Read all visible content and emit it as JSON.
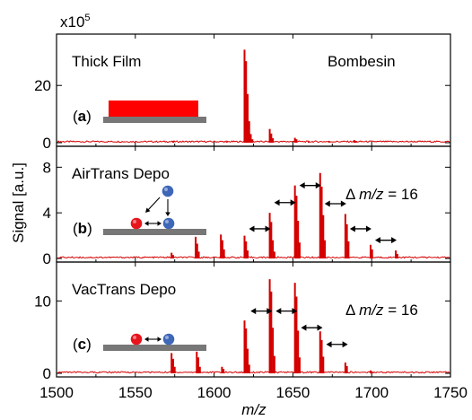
{
  "chart_data": {
    "type": "line",
    "x_axis": {
      "label": "m/z",
      "range": [
        1500,
        1750
      ],
      "ticks": [
        1500,
        1550,
        1600,
        1650,
        1700,
        1750
      ]
    },
    "y_axis": {
      "label": "Signal [a.u.]",
      "multiplier": "x10",
      "multiplier_exponent": "5"
    },
    "colors": {
      "trace": "#d40000",
      "film": "#ff0000",
      "substrate": "#777777",
      "red_sphere": "#e8141c",
      "blue_sphere": "#3e67b8"
    },
    "panels": [
      {
        "id": "a",
        "label_prefix": "(",
        "label_letter": "a",
        "label_suffix": ")",
        "name": "Thick Film",
        "analyte": "Bombesin",
        "ylim": [
          0,
          37
        ],
        "yticks": [
          0,
          20
        ],
        "inset": "film",
        "peaks": [
          [
            1574.0,
            0.4
          ],
          [
            1608.0,
            0.3
          ],
          [
            1619.3,
            32.5
          ],
          [
            1620.3,
            28.5
          ],
          [
            1621.3,
            17
          ],
          [
            1622.3,
            7.5
          ],
          [
            1623.3,
            3
          ],
          [
            1624.3,
            1.2
          ],
          [
            1635.3,
            4.8
          ],
          [
            1636.3,
            3.2
          ],
          [
            1637.3,
            1.6
          ],
          [
            1651.3,
            1.7
          ],
          [
            1652.3,
            1.2
          ],
          [
            1660.0,
            0.4
          ],
          [
            1673.0,
            0.3
          ],
          [
            1689.0,
            0.9
          ],
          [
            1690.0,
            0.6
          ]
        ]
      },
      {
        "id": "b",
        "label_prefix": "(",
        "label_letter": "b",
        "label_suffix": ")",
        "name": "AirTrans Depo",
        "annotation_prefix": "Δ ",
        "annotation_var": "m/z",
        "annotation_suffix": " = 16",
        "ylim": [
          0,
          9.6
        ],
        "yticks": [
          0,
          4,
          8
        ],
        "inset": "airtrans",
        "peaks": [
          [
            1573.0,
            0.5
          ],
          [
            1574.0,
            0.3
          ],
          [
            1588.3,
            1.9
          ],
          [
            1589.3,
            1.3
          ],
          [
            1590.3,
            0.6
          ],
          [
            1604.3,
            2.1
          ],
          [
            1605.3,
            1.6
          ],
          [
            1606.3,
            0.8
          ],
          [
            1619.3,
            2.0
          ],
          [
            1620.3,
            1.5
          ],
          [
            1621.3,
            0.7
          ],
          [
            1635.3,
            4.0
          ],
          [
            1636.3,
            3.2
          ],
          [
            1637.3,
            1.6
          ],
          [
            1638.3,
            0.6
          ],
          [
            1651.3,
            6.4
          ],
          [
            1652.3,
            5.5
          ],
          [
            1653.3,
            3.3
          ],
          [
            1654.3,
            1.4
          ],
          [
            1667.3,
            7.5
          ],
          [
            1668.3,
            6.3
          ],
          [
            1669.3,
            3.8
          ],
          [
            1670.3,
            1.6
          ],
          [
            1683.3,
            3.9
          ],
          [
            1684.3,
            3.0
          ],
          [
            1685.3,
            1.5
          ],
          [
            1699.3,
            1.2
          ],
          [
            1700.3,
            0.8
          ],
          [
            1715.3,
            0.7
          ],
          [
            1716.3,
            0.4
          ]
        ],
        "arrows": [
          [
            1621,
            1637,
            2.6
          ],
          [
            1637,
            1653,
            4.9
          ],
          [
            1653,
            1669,
            6.4
          ],
          [
            1669,
            1685,
            4.8
          ],
          [
            1685,
            1701,
            2.6
          ],
          [
            1701,
            1717,
            1.6
          ]
        ]
      },
      {
        "id": "c",
        "label_prefix": "(",
        "label_letter": "c",
        "label_suffix": ")",
        "name": "VacTrans Depo",
        "annotation_prefix": "Δ ",
        "annotation_var": "m/z",
        "annotation_suffix": " = 16",
        "ylim": [
          0,
          15
        ],
        "yticks": [
          0,
          10
        ],
        "inset": "vactrans",
        "peaks": [
          [
            1573.0,
            2.8
          ],
          [
            1574.0,
            2.0
          ],
          [
            1575.0,
            0.9
          ],
          [
            1589.0,
            3.0
          ],
          [
            1590.0,
            2.2
          ],
          [
            1591.0,
            0.9
          ],
          [
            1605.0,
            0.9
          ],
          [
            1606.0,
            0.6
          ],
          [
            1619.3,
            7.3
          ],
          [
            1620.3,
            6.2
          ],
          [
            1621.3,
            3.4
          ],
          [
            1622.3,
            1.2
          ],
          [
            1635.3,
            13.0
          ],
          [
            1636.3,
            11.3
          ],
          [
            1637.3,
            6.3
          ],
          [
            1638.3,
            2.4
          ],
          [
            1651.3,
            12.5
          ],
          [
            1652.3,
            10.6
          ],
          [
            1653.3,
            5.9
          ],
          [
            1654.3,
            2.2
          ],
          [
            1667.3,
            5.8
          ],
          [
            1668.3,
            4.6
          ],
          [
            1669.3,
            2.3
          ],
          [
            1683.3,
            1.5
          ],
          [
            1684.3,
            1.0
          ],
          [
            1699.3,
            0.4
          ]
        ],
        "arrows": [
          [
            1622,
            1638,
            8.6
          ],
          [
            1638,
            1654,
            8.6
          ],
          [
            1654,
            1670,
            6.3
          ],
          [
            1670,
            1686,
            4.0
          ]
        ]
      }
    ]
  }
}
